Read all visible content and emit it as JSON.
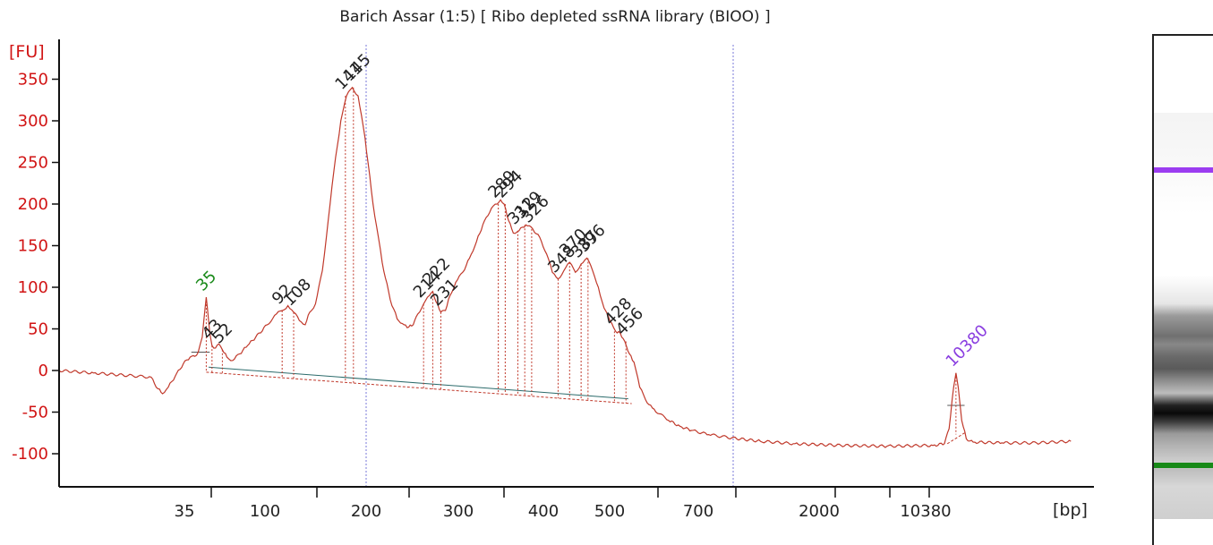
{
  "chart_data": {
    "type": "line",
    "title": "Barich Assar (1:5)  [ Ribo depleted ssRNA library (BIOO) ]",
    "ylabel": "[FU]",
    "xlabel": "[bp]",
    "ylim": [
      -135,
      385
    ],
    "y_ticks": [
      350,
      300,
      250,
      200,
      150,
      100,
      50,
      0,
      -50,
      -100
    ],
    "x_ticks": [
      "35",
      "100",
      "200",
      "300",
      "400",
      "500",
      "700",
      "2000",
      "10380"
    ],
    "series": [
      {
        "values": [
          [
            0,
            0
          ],
          [
            60,
            -3
          ],
          [
            120,
            -6
          ],
          [
            160,
            -8
          ],
          [
            172,
            -22
          ],
          [
            180,
            -28
          ],
          [
            190,
            -20
          ],
          [
            202,
            -7
          ],
          [
            216,
            8
          ],
          [
            228,
            16
          ],
          [
            236,
            17
          ],
          [
            242,
            22
          ],
          [
            249,
            40
          ],
          [
            254,
            75
          ],
          [
            256,
            88
          ],
          [
            258,
            75
          ],
          [
            262,
            45
          ],
          [
            266,
            30
          ],
          [
            272,
            27
          ],
          [
            278,
            32
          ],
          [
            284,
            25
          ],
          [
            292,
            16
          ],
          [
            302,
            12
          ],
          [
            314,
            20
          ],
          [
            328,
            30
          ],
          [
            342,
            40
          ],
          [
            362,
            55
          ],
          [
            378,
            68
          ],
          [
            388,
            72
          ],
          [
            398,
            78
          ],
          [
            408,
            70
          ],
          [
            418,
            60
          ],
          [
            428,
            55
          ],
          [
            436,
            70
          ],
          [
            446,
            80
          ],
          [
            458,
            120
          ],
          [
            468,
            180
          ],
          [
            478,
            240
          ],
          [
            490,
            300
          ],
          [
            500,
            330
          ],
          [
            510,
            340
          ],
          [
            520,
            330
          ],
          [
            532,
            280
          ],
          [
            546,
            200
          ],
          [
            562,
            130
          ],
          [
            576,
            85
          ],
          [
            588,
            62
          ],
          [
            600,
            55
          ],
          [
            608,
            52
          ],
          [
            616,
            55
          ],
          [
            624,
            68
          ],
          [
            634,
            80
          ],
          [
            644,
            90
          ],
          [
            650,
            95
          ],
          [
            656,
            82
          ],
          [
            664,
            70
          ],
          [
            672,
            72
          ],
          [
            680,
            90
          ],
          [
            690,
            106
          ],
          [
            702,
            118
          ],
          [
            714,
            135
          ],
          [
            726,
            155
          ],
          [
            740,
            180
          ],
          [
            752,
            195
          ],
          [
            762,
            200
          ],
          [
            768,
            205
          ],
          [
            774,
            200
          ],
          [
            782,
            180
          ],
          [
            790,
            165
          ],
          [
            800,
            168
          ],
          [
            812,
            175
          ],
          [
            824,
            170
          ],
          [
            836,
            160
          ],
          [
            848,
            140
          ],
          [
            858,
            118
          ],
          [
            868,
            110
          ],
          [
            878,
            120
          ],
          [
            888,
            130
          ],
          [
            898,
            118
          ],
          [
            908,
            128
          ],
          [
            918,
            135
          ],
          [
            928,
            120
          ],
          [
            938,
            100
          ],
          [
            948,
            75
          ],
          [
            958,
            60
          ],
          [
            968,
            47
          ],
          [
            976,
            45
          ],
          [
            984,
            35
          ],
          [
            992,
            20
          ],
          [
            1000,
            10
          ],
          [
            1010,
            -20
          ],
          [
            1020,
            -35
          ],
          [
            1032,
            -45
          ],
          [
            1044,
            -52
          ],
          [
            1060,
            -60
          ],
          [
            1080,
            -67
          ],
          [
            1100,
            -72
          ],
          [
            1130,
            -77
          ],
          [
            1170,
            -81
          ],
          [
            1220,
            -85
          ],
          [
            1280,
            -88
          ],
          [
            1360,
            -90
          ],
          [
            1440,
            -91
          ],
          [
            1520,
            -90
          ],
          [
            1540,
            -88
          ],
          [
            1548,
            -70
          ],
          [
            1556,
            -20
          ],
          [
            1560,
            -3
          ],
          [
            1564,
            -20
          ],
          [
            1570,
            -60
          ],
          [
            1578,
            -82
          ],
          [
            1590,
            -86
          ],
          [
            1640,
            -87
          ],
          [
            1700,
            -87
          ],
          [
            1760,
            -85
          ]
        ]
      }
    ],
    "peaks": [
      {
        "label": "35",
        "x": 256,
        "y": 88,
        "color": "#1a8a1a"
      },
      {
        "label": "43",
        "x": 266,
        "y": 30,
        "color": "#222222"
      },
      {
        "label": "52",
        "x": 284,
        "y": 25,
        "color": "#222222"
      },
      {
        "label": "92",
        "x": 388,
        "y": 72,
        "color": "#222222"
      },
      {
        "label": "108",
        "x": 408,
        "y": 70,
        "color": "#222222"
      },
      {
        "label": "141",
        "x": 498,
        "y": 330,
        "color": "#222222"
      },
      {
        "label": "145",
        "x": 512,
        "y": 340,
        "color": "#222222"
      },
      {
        "label": "214",
        "x": 634,
        "y": 80,
        "color": "#222222"
      },
      {
        "label": "222",
        "x": 650,
        "y": 95,
        "color": "#222222"
      },
      {
        "label": "231",
        "x": 664,
        "y": 70,
        "color": "#222222"
      },
      {
        "label": "289",
        "x": 764,
        "y": 200,
        "color": "#222222"
      },
      {
        "label": "294",
        "x": 776,
        "y": 200,
        "color": "#222222"
      },
      {
        "label": "312",
        "x": 798,
        "y": 168,
        "color": "#222222"
      },
      {
        "label": "319",
        "x": 810,
        "y": 175,
        "color": "#222222"
      },
      {
        "label": "326",
        "x": 822,
        "y": 170,
        "color": "#222222"
      },
      {
        "label": "348",
        "x": 868,
        "y": 110,
        "color": "#222222"
      },
      {
        "label": "370",
        "x": 888,
        "y": 130,
        "color": "#222222"
      },
      {
        "label": "387",
        "x": 908,
        "y": 128,
        "color": "#222222"
      },
      {
        "label": "396",
        "x": 920,
        "y": 135,
        "color": "#222222"
      },
      {
        "label": "428",
        "x": 966,
        "y": 47,
        "color": "#222222"
      },
      {
        "label": "456",
        "x": 986,
        "y": 35,
        "color": "#222222"
      },
      {
        "label": "10380",
        "x": 1560,
        "y": -3,
        "color": "#8a3ee0"
      }
    ]
  },
  "gel": {
    "upper_marker_color": "#9b3cf0",
    "lower_marker_color": "#188a18"
  }
}
